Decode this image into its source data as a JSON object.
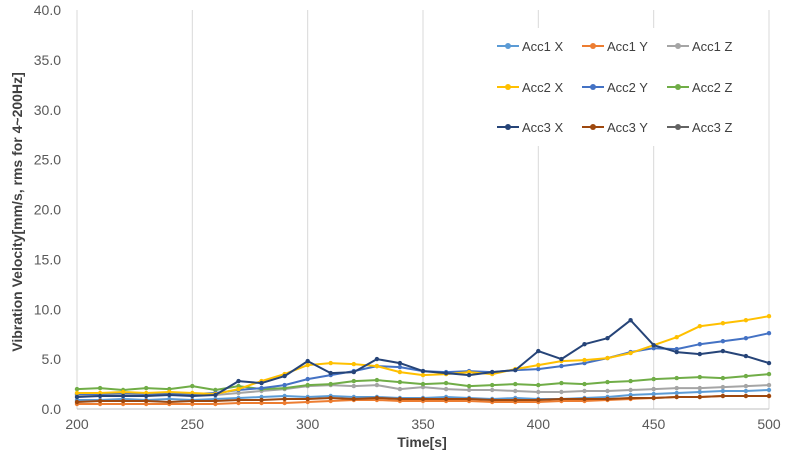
{
  "chart_data": {
    "type": "line",
    "title": "",
    "xlabel": "Time[s]",
    "ylabel": "Vibration Velocity[mm/s,  rms for 4~200Hz]",
    "xlim": [
      200,
      500
    ],
    "ylim": [
      0,
      40
    ],
    "x_ticks": [
      "200",
      "250",
      "300",
      "350",
      "400",
      "450",
      "500"
    ],
    "y_ticks": [
      "0.0",
      "5.0",
      "10.0",
      "15.0",
      "20.0",
      "25.0",
      "30.0",
      "35.0",
      "40.0"
    ],
    "grid": "vertical",
    "legend_position": "top-right",
    "x": [
      200,
      210,
      220,
      230,
      240,
      250,
      260,
      270,
      280,
      290,
      300,
      310,
      320,
      330,
      340,
      350,
      360,
      370,
      380,
      390,
      400,
      410,
      420,
      430,
      440,
      450,
      460,
      470,
      480,
      490,
      500
    ],
    "series": [
      {
        "name": "Acc1 X",
        "color": "#5B9BD5",
        "values": [
          0.9,
          0.9,
          1.0,
          0.9,
          1.0,
          0.9,
          1.0,
          1.1,
          1.2,
          1.3,
          1.2,
          1.3,
          1.2,
          1.2,
          1.1,
          1.1,
          1.2,
          1.1,
          1.0,
          1.1,
          1.0,
          1.0,
          1.1,
          1.2,
          1.4,
          1.5,
          1.6,
          1.7,
          1.8,
          1.8,
          1.9
        ]
      },
      {
        "name": "Acc1 Y",
        "color": "#ED7D31",
        "values": [
          0.5,
          0.5,
          0.5,
          0.5,
          0.5,
          0.5,
          0.5,
          0.6,
          0.6,
          0.6,
          0.7,
          0.8,
          0.9,
          0.9,
          0.8,
          0.8,
          0.8,
          0.8,
          0.7,
          0.7,
          0.7,
          0.8,
          0.8,
          0.9,
          1.0,
          1.1,
          1.2,
          1.2,
          1.3,
          1.3,
          1.3
        ]
      },
      {
        "name": "Acc1 Z",
        "color": "#A5A5A5",
        "values": [
          1.4,
          1.4,
          1.5,
          1.4,
          1.5,
          1.5,
          1.4,
          1.6,
          1.8,
          2.0,
          2.3,
          2.4,
          2.3,
          2.4,
          2.0,
          2.2,
          2.0,
          1.9,
          1.9,
          1.8,
          1.7,
          1.7,
          1.8,
          1.8,
          1.9,
          2.0,
          2.1,
          2.1,
          2.2,
          2.3,
          2.4
        ]
      },
      {
        "name": "Acc2 X",
        "color": "#FFC000",
        "values": [
          1.6,
          1.6,
          1.7,
          1.6,
          1.7,
          1.6,
          1.5,
          2.0,
          2.8,
          3.5,
          4.4,
          4.6,
          4.5,
          4.3,
          3.7,
          3.4,
          3.5,
          3.7,
          3.5,
          4.0,
          4.4,
          4.8,
          4.9,
          5.1,
          5.6,
          6.4,
          7.2,
          8.3,
          8.6,
          8.9,
          9.3
        ]
      },
      {
        "name": "Acc2 Y",
        "color": "#4472C4",
        "values": [
          1.5,
          1.5,
          1.6,
          1.5,
          1.6,
          1.5,
          1.6,
          1.9,
          2.1,
          2.4,
          3.0,
          3.4,
          3.8,
          4.3,
          4.2,
          3.8,
          3.7,
          3.8,
          3.7,
          3.9,
          4.0,
          4.3,
          4.6,
          5.1,
          5.7,
          6.1,
          6.0,
          6.5,
          6.8,
          7.1,
          7.6
        ]
      },
      {
        "name": "Acc2 Z",
        "color": "#70AD47",
        "values": [
          2.0,
          2.1,
          1.9,
          2.1,
          2.0,
          2.3,
          1.9,
          2.3,
          2.0,
          2.1,
          2.4,
          2.5,
          2.8,
          2.9,
          2.7,
          2.5,
          2.6,
          2.3,
          2.4,
          2.5,
          2.4,
          2.6,
          2.5,
          2.7,
          2.8,
          3.0,
          3.1,
          3.2,
          3.1,
          3.3,
          3.5
        ]
      },
      {
        "name": "Acc3 X",
        "color": "#264478",
        "values": [
          1.2,
          1.3,
          1.3,
          1.3,
          1.4,
          1.3,
          1.4,
          2.8,
          2.6,
          3.3,
          4.8,
          3.6,
          3.7,
          5.0,
          4.6,
          3.8,
          3.6,
          3.4,
          3.7,
          3.9,
          5.8,
          5.0,
          6.5,
          7.1,
          8.9,
          6.4,
          5.7,
          5.5,
          5.8,
          5.3,
          4.6
        ]
      },
      {
        "name": "Acc3 Y",
        "color": "#9E480E",
        "values": [
          0.7,
          0.8,
          0.8,
          0.8,
          0.7,
          0.8,
          0.8,
          0.9,
          0.9,
          1.0,
          1.0,
          1.1,
          1.0,
          1.1,
          1.0,
          1.0,
          1.0,
          1.0,
          0.9,
          0.9,
          0.9,
          1.0,
          1.0,
          1.0,
          1.1,
          1.1,
          1.2,
          1.2,
          1.3,
          1.3,
          1.3
        ]
      },
      {
        "name": "Acc3 Z",
        "color": "#636363",
        "values": [
          1.4,
          1.4,
          1.5,
          1.4,
          1.4,
          1.5,
          1.3,
          1.5,
          1.6,
          1.8,
          2.0,
          2.6,
          2.5,
          2.3,
          2.0,
          2.1,
          1.9,
          1.8,
          1.7,
          1.6,
          1.6,
          1.7,
          1.8,
          1.9,
          1.8,
          1.9,
          2.0,
          2.1,
          2.2,
          2.1,
          2.1
        ]
      }
    ]
  }
}
